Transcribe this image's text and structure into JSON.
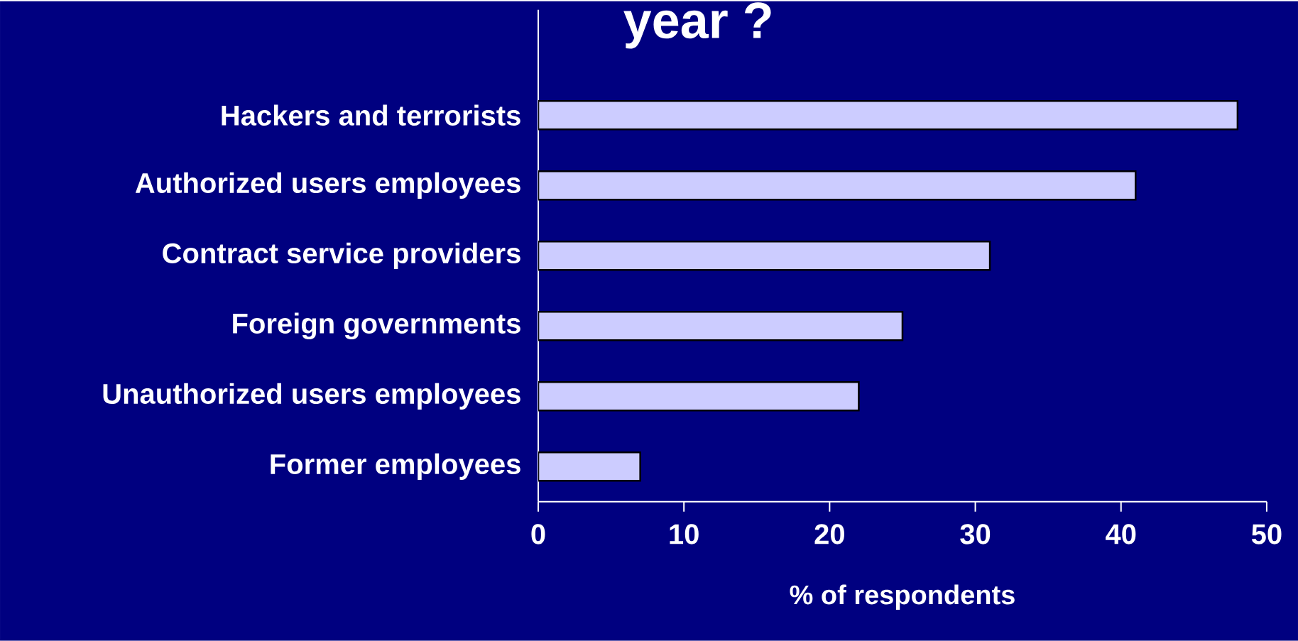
{
  "chart_data": {
    "type": "bar",
    "orientation": "horizontal",
    "title": "year ?",
    "xlabel": "% of respondents",
    "categories": [
      "Hackers and terrorists",
      "Authorized users employees",
      "Contract service providers",
      "Foreign governments",
      "Unauthorized users employees",
      "Former employees"
    ],
    "values": [
      48,
      41,
      31,
      25,
      22,
      7
    ],
    "color": "#ccccff",
    "xlim": [
      0,
      50
    ],
    "xticks": [
      0,
      10,
      20,
      30,
      40,
      50
    ]
  }
}
